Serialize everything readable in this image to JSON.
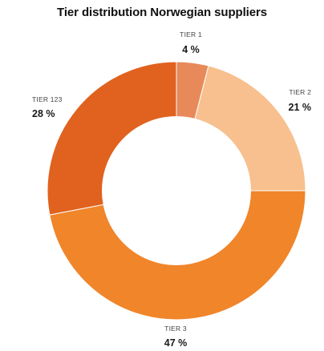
{
  "chart_data": {
    "type": "pie",
    "variant": "donut",
    "title": "Tier distribution Norwegian suppliers",
    "slices": [
      {
        "label": "TIER 1",
        "value": 4,
        "display": "4 %",
        "color": "#e8895a"
      },
      {
        "label": "TIER 2",
        "value": 21,
        "display": "21 %",
        "color": "#f7c08e"
      },
      {
        "label": "TIER 3",
        "value": 47,
        "display": "47 %",
        "color": "#f0852a"
      },
      {
        "label": "TIER 123",
        "value": 28,
        "display": "28 %",
        "color": "#e0621e"
      }
    ],
    "start_at": "top",
    "direction": "clockwise",
    "legend": "none"
  }
}
